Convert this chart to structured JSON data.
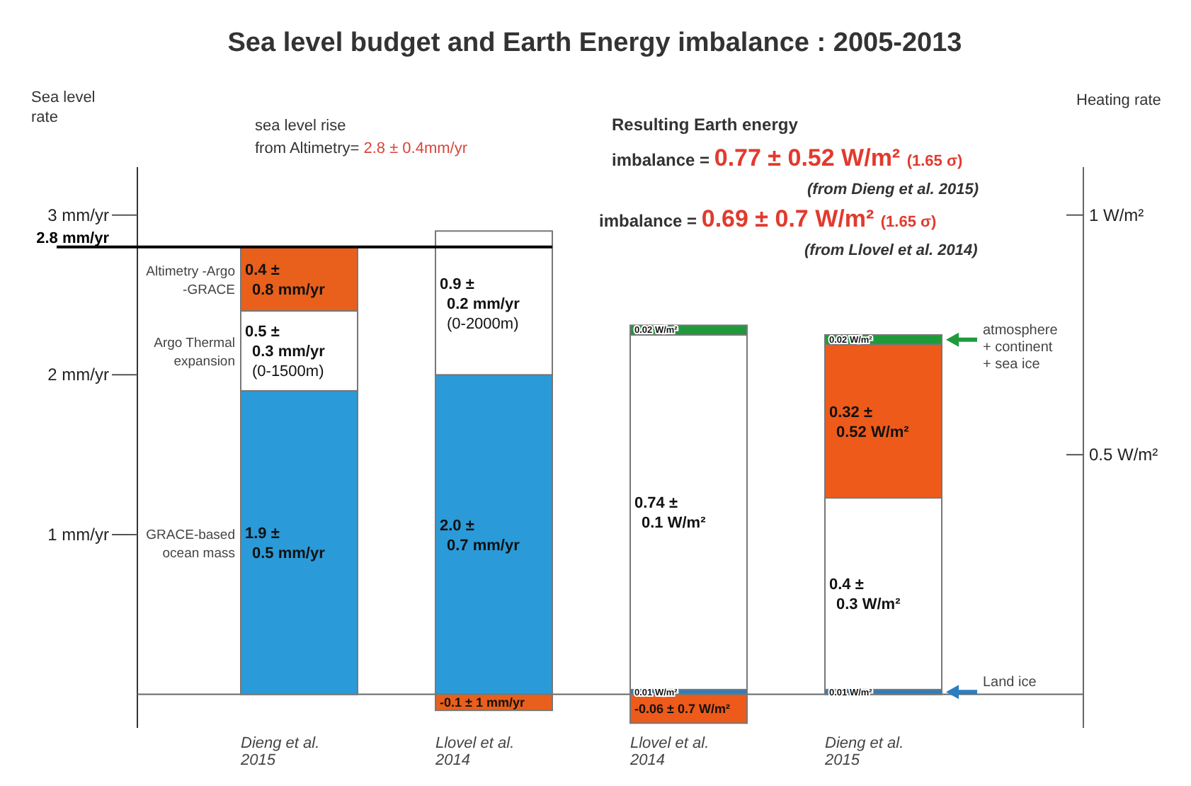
{
  "chart_data": {
    "type": "bar",
    "stacked": true,
    "title": "Sea level budget and Earth Energy imbalance : 2005-2013",
    "ylabel": "Sea level rate",
    "y2label": "Heating rate",
    "categories": [
      "Dieng et al. 2015",
      "Llovel et al. 2014",
      "Llovel et al. 2014",
      "Dieng et al. 2015"
    ],
    "ylim": [
      -0.21,
      3.3
    ],
    "yticks": [
      {
        "value": 1,
        "label": "1 mm/yr"
      },
      {
        "value": 2,
        "label": "2 mm/yr"
      },
      {
        "value": 3,
        "label": "3 mm/yr"
      }
    ],
    "y2lim": [
      -0.07,
      1.1
    ],
    "y2ticks": [
      {
        "value": 0.5,
        "label": "0.5 W/m²"
      },
      {
        "value": 1,
        "label": "1 W/m²"
      }
    ],
    "ref_lines": [
      {
        "axis": "y",
        "value": 2.8,
        "label": "2.8 mm/yr",
        "color": "#000000"
      }
    ],
    "legend": "right",
    "series": [
      {
        "name": "GRACE-based ocean mass",
        "color": "#2a9ad8",
        "axis": "y",
        "values": [
          1.9,
          2.0,
          null,
          null
        ],
        "value_labels": [
          "1.9 ± 0.5 mm/yr",
          "2.0 ± 0.7 mm/yr",
          null,
          null
        ]
      },
      {
        "name": "Argo Thermal expansion",
        "color": "#ffffff",
        "axis": "y",
        "values": [
          0.5,
          0.9,
          null,
          null
        ],
        "value_labels": [
          "0.5 ± 0.3 mm/yr (0-1500m)",
          "0.9 ± 0.2 mm/yr (0-2000m)",
          null,
          null
        ]
      },
      {
        "name": "Altimetry -Argo -GRACE",
        "color": "#e8601c",
        "axis": "y",
        "values": [
          0.4,
          -0.1,
          null,
          null
        ],
        "value_labels": [
          "0.4 ± 0.8 mm/yr",
          "-0.1 ± 1 mm/yr",
          null,
          null
        ]
      },
      {
        "name": "Land ice",
        "color": "#2b7fbf",
        "axis": "y2",
        "values": [
          null,
          null,
          0.01,
          0.01
        ],
        "value_labels": [
          null,
          null,
          "0.01 W/m²",
          "0.01 W/m²"
        ]
      },
      {
        "color": "#ffffff",
        "axis": "y2",
        "values": [
          null,
          null,
          0.74,
          0.4
        ],
        "value_labels": [
          null,
          null,
          "0.74 ± 0.1 W/m²",
          "0.4 ± 0.3 W/m²"
        ]
      },
      {
        "color": "#ee5a1a",
        "axis": "y2",
        "values": [
          null,
          null,
          -0.06,
          0.32
        ],
        "value_labels": [
          null,
          null,
          "-0.06 ± 0.7 W/m²",
          "0.32 ± 0.52 W/m²"
        ]
      },
      {
        "name": "atmosphere + continent + sea ice",
        "color": "#1f9a3a",
        "axis": "y2",
        "values": [
          null,
          null,
          0.02,
          0.02
        ],
        "value_labels": [
          null,
          null,
          "0.02 W/m²",
          "0.02 W/m²"
        ]
      }
    ],
    "annotations": [
      "sea level rise from Altimetry= 2.8 ± 0.4mm/yr",
      "Resulting Earth energy",
      "imbalance = 0.77 ± 0.52 W/m² (1.65 σ)",
      "(from Dieng et al. 2015)",
      "imbalance = 0.69 ± 0.7 W/m² (1.65 σ)",
      "(from Llovel et al. 2014)"
    ]
  }
}
